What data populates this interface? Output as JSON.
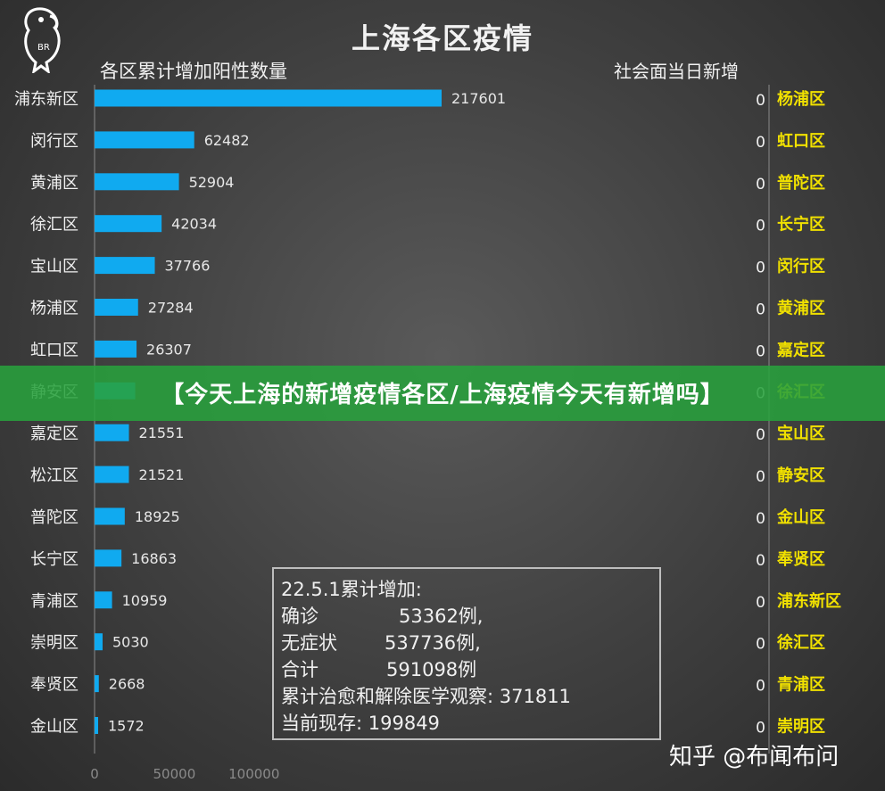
{
  "title": "上海各区疫情",
  "left_subtitle": "各区累计增加阳性数量",
  "right_subtitle": "社会面当日新增",
  "banner": "【今天上海的新增疫情各区/上海疫情今天有新增吗】",
  "watermark": "知乎 @布闻布问",
  "logo_text": "BR",
  "colors": {
    "bar": "#10aaf0",
    "right_label": "#f0e000",
    "banner": "#28a03c",
    "text": "#f0f0f0"
  },
  "info_box": {
    "heading": "22.5.1累计增加:",
    "rows": [
      {
        "label": "确诊",
        "value": "53362例,"
      },
      {
        "label": "无症状",
        "value": "537736例,"
      },
      {
        "label": "合计",
        "value": "591098例"
      }
    ],
    "recovered": "累计治愈和解除医学观察: 371811",
    "current": "当前现存: 199849"
  },
  "chart_data": [
    {
      "type": "bar",
      "orientation": "horizontal",
      "title": "各区累计增加阳性数量",
      "categories": [
        "浦东新区",
        "闵行区",
        "黄浦区",
        "徐汇区",
        "宝山区",
        "杨浦区",
        "虹口区",
        "静安区",
        "嘉定区",
        "松江区",
        "普陀区",
        "长宁区",
        "青浦区",
        "崇明区",
        "奉贤区",
        "金山区"
      ],
      "values": [
        217601,
        62482,
        52904,
        42034,
        37766,
        27284,
        26307,
        25500,
        21551,
        21521,
        18925,
        16863,
        10959,
        5030,
        2668,
        1572
      ],
      "value_labels": [
        "217601",
        "62482",
        "52904",
        "42034",
        "37766",
        "27284",
        "26307",
        "",
        "21551",
        "21521",
        "18925",
        "16863",
        "10959",
        "5030",
        "2668",
        "1572"
      ],
      "x_ticks": [
        "0",
        "50000",
        "100000"
      ],
      "xlim": [
        0,
        217601
      ]
    },
    {
      "type": "bar",
      "orientation": "horizontal",
      "title": "社会面当日新增",
      "categories": [
        "杨浦区",
        "虹口区",
        "普陀区",
        "长宁区",
        "闵行区",
        "黄浦区",
        "嘉定区",
        "徐汇区",
        "宝山区",
        "静安区",
        "金山区",
        "奉贤区",
        "浦东新区",
        "徐汇区",
        "青浦区",
        "崇明区"
      ],
      "values": [
        0,
        0,
        0,
        0,
        0,
        0,
        0,
        0,
        0,
        0,
        0,
        0,
        0,
        0,
        0,
        0
      ]
    }
  ]
}
